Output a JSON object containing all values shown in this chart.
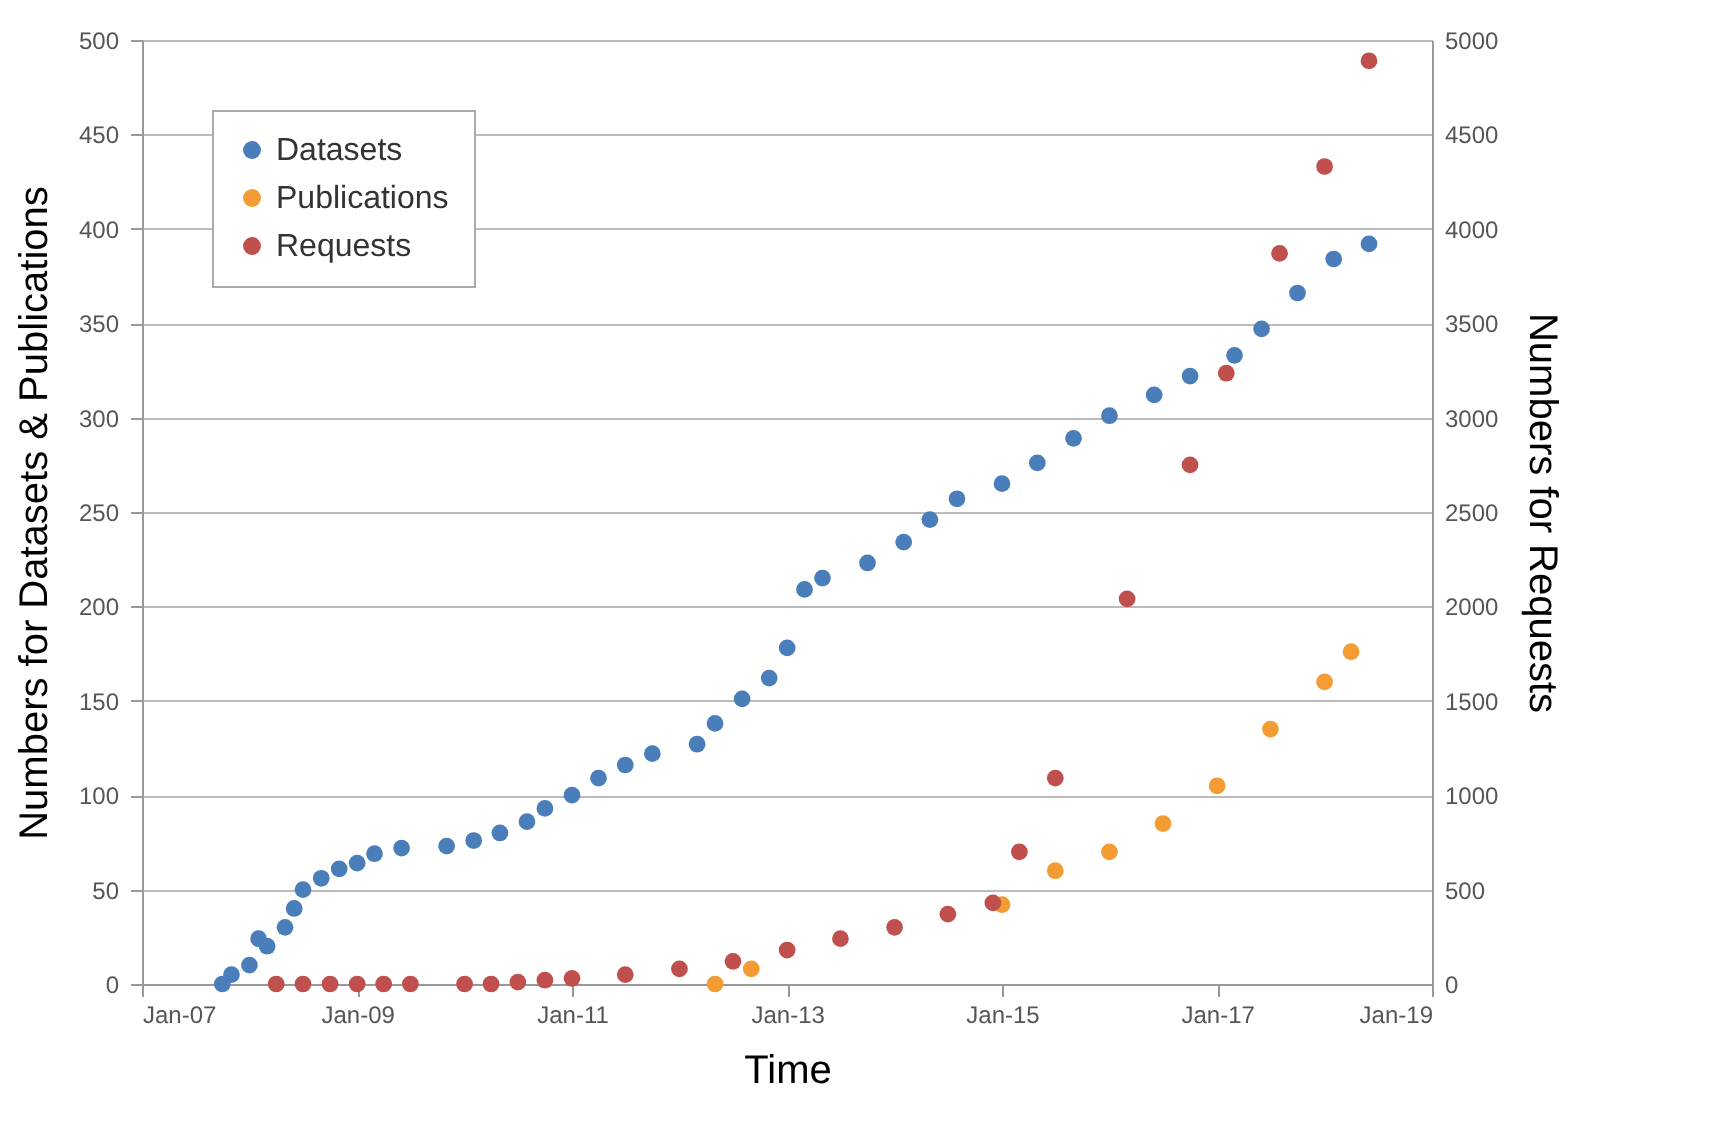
{
  "chart_data": {
    "type": "scatter",
    "xlabel": "Time",
    "ylabel": "Numbers for Datasets & Publications",
    "y2label": "Numbers for Requests",
    "xlim": [
      "2007-01",
      "2019-01"
    ],
    "xticks": [
      {
        "value": "2007-01",
        "label": "Jan-07"
      },
      {
        "value": "2009-01",
        "label": "Jan-09"
      },
      {
        "value": "2011-01",
        "label": "Jan-11"
      },
      {
        "value": "2013-01",
        "label": "Jan-13"
      },
      {
        "value": "2015-01",
        "label": "Jan-15"
      },
      {
        "value": "2017-01",
        "label": "Jan-17"
      },
      {
        "value": "2019-01",
        "label": "Jan-19"
      }
    ],
    "ylim": [
      0,
      500
    ],
    "yticks": [
      0,
      50,
      100,
      150,
      200,
      250,
      300,
      350,
      400,
      450,
      500
    ],
    "y2lim": [
      0,
      5000
    ],
    "y2ticks": [
      0,
      500,
      1000,
      1500,
      2000,
      2500,
      3000,
      3500,
      4000,
      4500,
      5000
    ],
    "grid": "y",
    "legend": "top left",
    "marker": "circle",
    "series": [
      {
        "name": "Datasets",
        "color": "#4a7ebb",
        "x": [
          "2007-10",
          "2007-11",
          "2008-01",
          "2008-02",
          "2008-03",
          "2008-05",
          "2008-06",
          "2008-07",
          "2008-09",
          "2008-11",
          "2009-01",
          "2009-03",
          "2009-06",
          "2009-11",
          "2010-02",
          "2010-05",
          "2010-08",
          "2010-10",
          "2011-01",
          "2011-04",
          "2011-07",
          "2011-10",
          "2012-03",
          "2012-05",
          "2012-08",
          "2012-11",
          "2013-01",
          "2013-03",
          "2013-05",
          "2013-10",
          "2014-02",
          "2014-05",
          "2014-08",
          "2015-01",
          "2015-05",
          "2015-09",
          "2016-01",
          "2016-06",
          "2016-10",
          "2017-03",
          "2017-06",
          "2017-10",
          "2018-02",
          "2018-06"
        ],
        "values": [
          0,
          5,
          10,
          24,
          20,
          30,
          40,
          50,
          56,
          61,
          64,
          69,
          72,
          73,
          76,
          80,
          86,
          93,
          100,
          109,
          116,
          122,
          127,
          138,
          151,
          162,
          178,
          209,
          215,
          223,
          234,
          246,
          257,
          265,
          276,
          289,
          301,
          312,
          322,
          333,
          347,
          366,
          384,
          392
        ]
      },
      {
        "name": "Publications",
        "color": "#f39c33",
        "x": [
          "2012-05",
          "2012-09",
          "2013-01",
          "2013-07",
          "2014-01",
          "2014-07",
          "2015-01",
          "2015-07",
          "2016-01",
          "2016-07",
          "2017-01",
          "2017-07",
          "2018-01",
          "2018-04"
        ],
        "values": [
          0,
          8,
          null,
          null,
          null,
          null,
          42,
          60,
          70,
          85,
          105,
          135,
          160,
          176
        ]
      },
      {
        "name": "Requests",
        "color": "#c0504d",
        "axis": "y2",
        "x": [
          "2008-04",
          "2008-07",
          "2008-10",
          "2009-01",
          "2009-04",
          "2009-07",
          "2010-01",
          "2010-04",
          "2010-07",
          "2010-10",
          "2011-01",
          "2011-07",
          "2012-01",
          "2012-07",
          "2013-01",
          "2013-07",
          "2014-01",
          "2014-07",
          "2014-12",
          "2015-03",
          "2015-07",
          "2016-03",
          "2016-10",
          "2017-02",
          "2017-08",
          "2018-01",
          "2018-06"
        ],
        "values": [
          0,
          0,
          0,
          0,
          0,
          0,
          0,
          0,
          10,
          20,
          30,
          50,
          80,
          120,
          180,
          240,
          300,
          370,
          430,
          700,
          1090,
          2040,
          2750,
          3235,
          3870,
          4330,
          4890
        ]
      }
    ]
  }
}
